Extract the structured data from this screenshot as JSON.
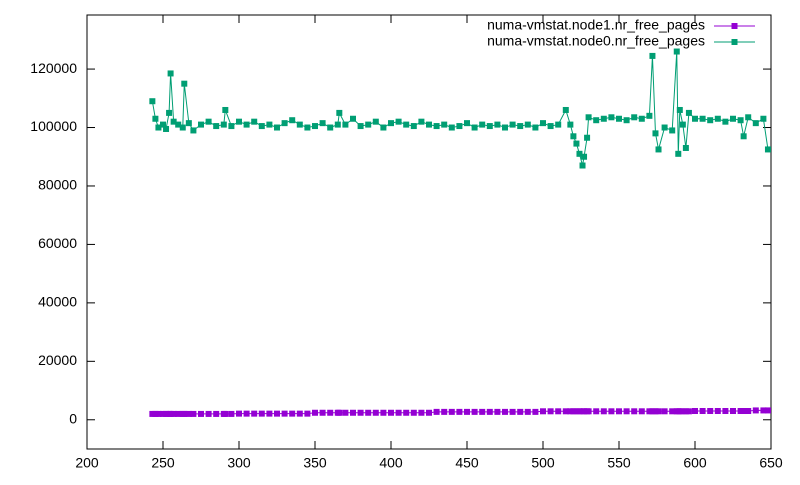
{
  "chart_data": {
    "type": "line",
    "x": [
      243,
      245,
      247,
      250,
      252,
      254,
      255,
      257,
      260,
      263,
      264,
      267,
      270,
      275,
      280,
      285,
      290,
      291,
      295,
      300,
      305,
      310,
      315,
      320,
      325,
      330,
      335,
      340,
      345,
      350,
      355,
      360,
      365,
      366,
      370,
      375,
      380,
      385,
      390,
      395,
      400,
      405,
      410,
      415,
      420,
      425,
      430,
      435,
      440,
      445,
      450,
      455,
      460,
      465,
      470,
      475,
      480,
      485,
      490,
      495,
      500,
      505,
      510,
      515,
      518,
      520,
      522,
      524,
      526,
      527,
      529,
      530,
      535,
      540,
      545,
      550,
      555,
      560,
      565,
      570,
      572,
      574,
      576,
      580,
      585,
      588,
      589,
      590,
      592,
      594,
      596,
      600,
      605,
      610,
      615,
      620,
      625,
      630,
      632,
      635,
      640,
      645,
      648
    ],
    "series": [
      {
        "name": "numa-vmstat.node1.nr_free_pages",
        "color": "#9400d3",
        "values": [
          2000,
          2000,
          2000,
          2000,
          2000,
          2000,
          2000,
          2000,
          2000,
          2000,
          2000,
          2000,
          2000,
          2000,
          2000,
          2000,
          2000,
          2000,
          2000,
          2100,
          2100,
          2100,
          2100,
          2100,
          2100,
          2100,
          2100,
          2100,
          2100,
          2400,
          2400,
          2400,
          2400,
          2400,
          2400,
          2400,
          2400,
          2400,
          2400,
          2400,
          2400,
          2400,
          2400,
          2400,
          2400,
          2400,
          2700,
          2700,
          2700,
          2700,
          2700,
          2700,
          2700,
          2700,
          2700,
          2700,
          2700,
          2700,
          2700,
          2700,
          2900,
          2900,
          2900,
          2900,
          2900,
          2900,
          2900,
          2900,
          2900,
          2900,
          2900,
          2900,
          2900,
          2900,
          2900,
          2900,
          2900,
          2900,
          2900,
          2900,
          2900,
          2900,
          2900,
          2900,
          2900,
          2900,
          2900,
          2900,
          2900,
          2900,
          2900,
          3000,
          3000,
          3000,
          3000,
          3000,
          3000,
          3000,
          3000,
          3000,
          3200,
          3200,
          3200
        ]
      },
      {
        "name": "numa-vmstat.node0.nr_free_pages",
        "color": "#009e73",
        "values": [
          109000,
          103000,
          100000,
          101000,
          99500,
          105000,
          118500,
          102000,
          101000,
          100000,
          115000,
          101500,
          99000,
          101000,
          102000,
          100500,
          101000,
          106000,
          100500,
          102000,
          101000,
          102000,
          100500,
          101000,
          100000,
          101500,
          102500,
          101000,
          100000,
          100500,
          101500,
          100000,
          101000,
          105000,
          101000,
          103000,
          100500,
          101000,
          102000,
          100000,
          101500,
          102000,
          101000,
          100500,
          102000,
          101000,
          100500,
          101000,
          100000,
          100500,
          101500,
          100000,
          101000,
          100500,
          101000,
          100000,
          101000,
          100500,
          101000,
          100000,
          101500,
          100500,
          101000,
          106000,
          101000,
          97000,
          94500,
          91000,
          87000,
          90000,
          96500,
          103500,
          102500,
          103000,
          103500,
          103000,
          102500,
          103500,
          103000,
          104000,
          124500,
          98000,
          92500,
          100000,
          99000,
          126000,
          91000,
          106000,
          101000,
          93000,
          105000,
          103000,
          103000,
          102500,
          103000,
          102000,
          103000,
          102500,
          97000,
          103500,
          101500,
          103000,
          92500
        ]
      }
    ],
    "xlim": [
      200,
      650
    ],
    "ylim": [
      -10000,
      138500
    ],
    "xticks": [
      200,
      250,
      300,
      350,
      400,
      450,
      500,
      550,
      600,
      650
    ],
    "yticks": [
      0,
      20000,
      40000,
      60000,
      80000,
      100000,
      120000
    ],
    "legend": "top-right"
  }
}
